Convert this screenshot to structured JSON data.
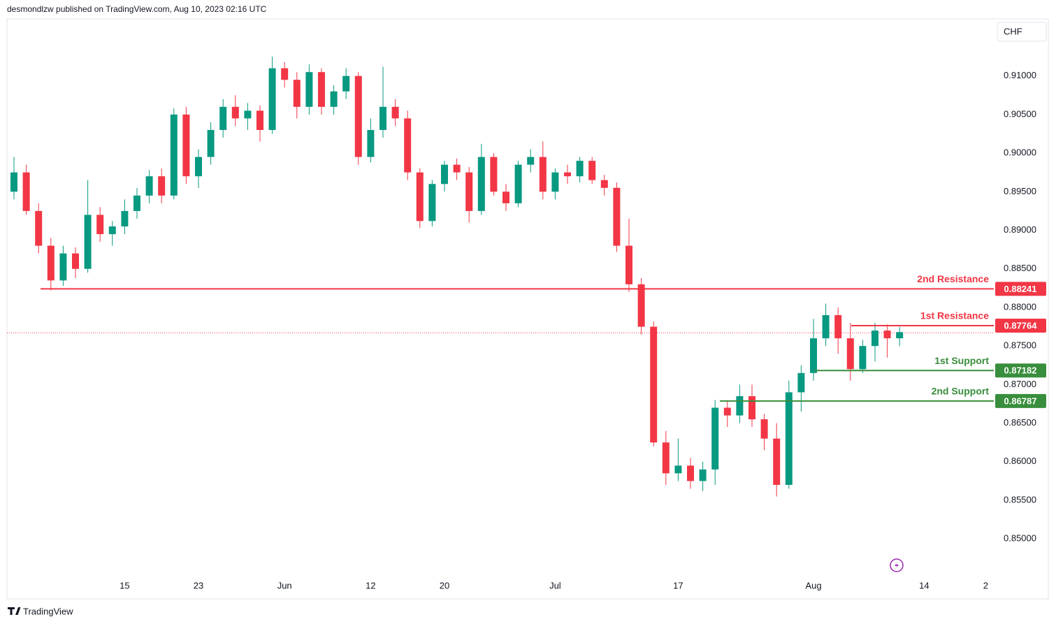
{
  "header": "desmondlzw published on TradingView.com, Aug 10, 2023 02:16 UTC",
  "currency": "CHF",
  "brand": "TradingView",
  "chart_data": {
    "type": "candlestick",
    "categories": [
      null,
      null,
      null,
      null,
      null,
      null,
      null,
      null,
      null,
      "15",
      null,
      null,
      null,
      null,
      null,
      "23",
      null,
      null,
      null,
      null,
      null,
      null,
      "Jun",
      null,
      null,
      null,
      null,
      null,
      null,
      "12",
      null,
      null,
      null,
      null,
      null,
      "20",
      null,
      null,
      null,
      null,
      null,
      null,
      null,
      null,
      "Jul",
      null,
      null,
      null,
      null,
      null,
      null,
      null,
      null,
      null,
      "17",
      null,
      null,
      null,
      null,
      null,
      null,
      null,
      null,
      null,
      null,
      "Aug",
      null,
      null,
      null,
      null,
      null,
      null,
      null,
      null,
      "14",
      null,
      null,
      null,
      null,
      "2"
    ],
    "open": [
      0.895,
      0.8975,
      0.8925,
      0.888,
      0.8835,
      0.887,
      0.885,
      0.892,
      0.8895,
      0.8905,
      0.8925,
      0.8945,
      0.897,
      0.8945,
      0.905,
      0.897,
      0.8995,
      0.903,
      0.906,
      0.9045,
      0.9055,
      0.903,
      0.911,
      0.9095,
      0.906,
      0.9105,
      0.906,
      0.908,
      0.91,
      0.8995,
      0.903,
      0.906,
      0.9045,
      0.8975,
      0.8912,
      0.896,
      0.8985,
      0.8975,
      0.8925,
      0.8995,
      0.895,
      0.8935,
      0.8985,
      0.8995,
      0.895,
      0.8975,
      0.897,
      0.899,
      0.8965,
      0.8955,
      0.888,
      0.883,
      0.8775,
      0.8625,
      0.8585,
      0.8595,
      0.8575,
      0.859,
      0.867,
      0.866,
      0.8685,
      0.8655,
      0.863,
      0.857,
      0.869,
      0.8715,
      0.876,
      0.879,
      0.876,
      0.872,
      0.875,
      0.877,
      0.876,
      null,
      null,
      null,
      null,
      null,
      null,
      null
    ],
    "high": [
      0.8995,
      0.8985,
      0.8935,
      0.889,
      0.888,
      0.8878,
      0.8965,
      0.893,
      0.8912,
      0.894,
      0.8955,
      0.8978,
      0.898,
      0.9058,
      0.906,
      0.9005,
      0.904,
      0.907,
      0.9075,
      0.9065,
      0.9062,
      0.9125,
      0.9118,
      0.9105,
      0.9115,
      0.911,
      0.9088,
      0.911,
      0.9105,
      0.9045,
      0.9112,
      0.907,
      0.9055,
      0.898,
      0.8965,
      0.899,
      0.8993,
      0.8982,
      0.9012,
      0.9,
      0.896,
      0.899,
      0.9005,
      0.9015,
      0.898,
      0.8985,
      0.8995,
      0.8995,
      0.8972,
      0.8962,
      0.8915,
      0.8838,
      0.8782,
      0.864,
      0.863,
      0.8605,
      0.86,
      0.868,
      0.8678,
      0.87,
      0.87,
      0.8662,
      0.865,
      0.8705,
      0.8725,
      0.8785,
      0.8805,
      0.88,
      0.878,
      0.8758,
      0.878,
      0.8778,
      0.8775,
      null,
      null,
      null,
      null,
      null,
      null,
      null
    ],
    "low": [
      0.894,
      0.892,
      0.887,
      0.8822,
      0.8828,
      0.8838,
      0.8845,
      0.8885,
      0.888,
      0.8895,
      0.8915,
      0.8935,
      0.8935,
      0.894,
      0.896,
      0.8955,
      0.8985,
      0.902,
      0.9035,
      0.903,
      0.9015,
      0.9025,
      0.9085,
      0.9045,
      0.905,
      0.905,
      0.905,
      0.907,
      0.8985,
      0.8988,
      0.902,
      0.9035,
      0.8965,
      0.8903,
      0.8905,
      0.895,
      0.8965,
      0.891,
      0.892,
      0.8945,
      0.8925,
      0.893,
      0.8975,
      0.894,
      0.894,
      0.896,
      0.8962,
      0.896,
      0.8945,
      0.8872,
      0.882,
      0.8765,
      0.862,
      0.857,
      0.8575,
      0.8565,
      0.8562,
      0.857,
      0.8645,
      0.865,
      0.8645,
      0.8615,
      0.8555,
      0.8565,
      0.8665,
      0.8705,
      0.875,
      0.874,
      0.8705,
      0.8715,
      0.873,
      0.8735,
      0.875,
      null,
      null,
      null,
      null,
      null,
      null,
      null
    ],
    "close": [
      0.8975,
      0.8925,
      0.888,
      0.8835,
      0.887,
      0.885,
      0.892,
      0.8895,
      0.8905,
      0.8925,
      0.8945,
      0.897,
      0.8945,
      0.905,
      0.897,
      0.8995,
      0.903,
      0.906,
      0.9045,
      0.9055,
      0.903,
      0.911,
      0.9095,
      0.906,
      0.9105,
      0.906,
      0.908,
      0.91,
      0.8995,
      0.903,
      0.906,
      0.9045,
      0.8975,
      0.8912,
      0.896,
      0.8985,
      0.8975,
      0.8925,
      0.8995,
      0.895,
      0.8935,
      0.8985,
      0.8995,
      0.895,
      0.8975,
      0.897,
      0.899,
      0.8965,
      0.8955,
      0.888,
      0.883,
      0.8775,
      0.8625,
      0.8585,
      0.8595,
      0.8575,
      0.859,
      0.867,
      0.866,
      0.8685,
      0.8655,
      0.863,
      0.857,
      0.869,
      0.8715,
      0.876,
      0.879,
      0.876,
      0.872,
      0.875,
      0.877,
      0.876,
      0.8768,
      null,
      null,
      null,
      null,
      null,
      null,
      null
    ],
    "up_color": "#089981",
    "down_color": "#f23645",
    "last_price": 0.8767,
    "ylim": [
      0.8454,
      0.9174
    ],
    "yticks": [
      {
        "value": 0.85,
        "label": "0.85000"
      },
      {
        "value": 0.855,
        "label": "0.85500"
      },
      {
        "value": 0.86,
        "label": "0.86000"
      },
      {
        "value": 0.865,
        "label": "0.86500"
      },
      {
        "value": 0.87,
        "label": "0.87000"
      },
      {
        "value": 0.875,
        "label": "0.87500"
      },
      {
        "value": 0.88,
        "label": "0.88000"
      },
      {
        "value": 0.885,
        "label": "0.88500"
      },
      {
        "value": 0.89,
        "label": "0.89000"
      },
      {
        "value": 0.895,
        "label": "0.89500"
      },
      {
        "value": 0.9,
        "label": "0.90000"
      },
      {
        "value": 0.905,
        "label": "0.90500"
      },
      {
        "value": 0.91,
        "label": "0.91000"
      }
    ],
    "grid": false,
    "levels": [
      {
        "name": "2nd Resistance",
        "value": 0.88241,
        "color": "#f23645"
      },
      {
        "name": "1st Resistance",
        "value": 0.87764,
        "color": "#f23645"
      },
      {
        "name": "1st Support",
        "value": 0.87182,
        "color": "#388e3c"
      },
      {
        "name": "2nd Support",
        "value": 0.86787,
        "color": "#388e3c"
      }
    ]
  }
}
